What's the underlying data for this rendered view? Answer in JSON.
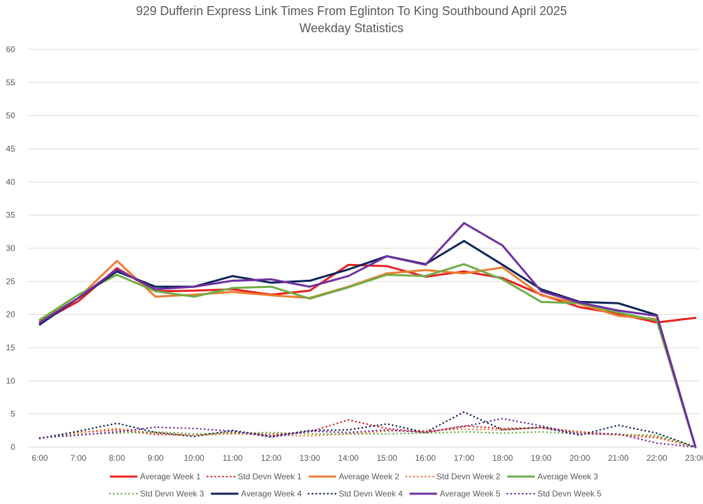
{
  "chart_data": {
    "type": "line",
    "title": "929 Dufferin Express Link Times From Eglinton To King Southbound April 2025",
    "subtitle": "Weekday Statistics",
    "xlabel": "",
    "ylabel": "",
    "ylim": [
      0,
      60
    ],
    "yticks": [
      0,
      5,
      10,
      15,
      20,
      25,
      30,
      35,
      40,
      45,
      50,
      55,
      60
    ],
    "grid": true,
    "legend_position": "bottom",
    "categories": [
      "6:00",
      "7:00",
      "8:00",
      "9:00",
      "10:00",
      "11:00",
      "12:00",
      "13:00",
      "14:00",
      "15:00",
      "16:00",
      "17:00",
      "18:00",
      "19:00",
      "20:00",
      "21:00",
      "22:00",
      "23:00"
    ],
    "series": [
      {
        "name": "Average Week 1",
        "style": "solid",
        "color": "#e8211f",
        "values": [
          18.8,
          22.0,
          27.0,
          23.5,
          23.6,
          23.8,
          23.0,
          23.6,
          27.5,
          27.3,
          25.7,
          26.5,
          25.5,
          23.0,
          21.1,
          20.1,
          18.8,
          19.5
        ]
      },
      {
        "name": "Std Devn Week 1",
        "style": "dotted",
        "color": "#e8211f",
        "values": [
          1.3,
          2.2,
          2.6,
          1.9,
          1.8,
          2.2,
          1.9,
          2.3,
          4.1,
          2.8,
          2.2,
          3.2,
          2.8,
          2.9,
          2.3,
          1.9,
          1.5,
          0
        ]
      },
      {
        "name": "Average Week 2",
        "style": "solid",
        "color": "#ed7d31",
        "values": [
          19.0,
          22.5,
          28.1,
          22.7,
          23.0,
          23.4,
          22.9,
          22.5,
          24.2,
          26.2,
          26.7,
          26.2,
          27.1,
          22.9,
          21.6,
          19.8,
          19.3,
          0
        ]
      },
      {
        "name": "Std Devn Week 2",
        "style": "dotted",
        "color": "#ed7d31",
        "values": [
          1.3,
          2.2,
          2.8,
          2.1,
          1.8,
          2.0,
          1.8,
          1.7,
          2.0,
          2.4,
          2.5,
          2.7,
          2.6,
          2.9,
          2.2,
          1.8,
          1.4,
          0
        ]
      },
      {
        "name": "Average Week 3",
        "style": "solid",
        "color": "#70ad47",
        "values": [
          19.2,
          23.0,
          26.0,
          23.5,
          22.7,
          24.0,
          24.2,
          22.4,
          24.1,
          26.0,
          25.8,
          27.6,
          25.3,
          21.9,
          21.7,
          20.3,
          19.1,
          0
        ]
      },
      {
        "name": "Std Devn Week 3",
        "style": "dotted",
        "color": "#70ad47",
        "values": [
          1.4,
          1.9,
          2.1,
          2.3,
          2.0,
          2.1,
          2.2,
          2.0,
          2.0,
          2.0,
          2.1,
          2.3,
          2.1,
          2.3,
          2.0,
          1.9,
          1.8,
          0
        ]
      },
      {
        "name": "Average Week 4",
        "style": "solid",
        "color": "#0e2459",
        "values": [
          18.5,
          22.5,
          26.5,
          24.2,
          24.2,
          25.8,
          24.8,
          25.1,
          26.8,
          28.8,
          27.6,
          31.1,
          27.5,
          23.8,
          21.9,
          21.7,
          19.9,
          0
        ]
      },
      {
        "name": "Std Devn Week 4",
        "style": "dotted",
        "color": "#0e2459",
        "values": [
          1.3,
          2.4,
          3.6,
          2.2,
          1.6,
          2.5,
          1.6,
          2.5,
          2.6,
          3.5,
          2.2,
          5.3,
          2.6,
          3.0,
          1.8,
          3.3,
          2.1,
          0
        ]
      },
      {
        "name": "Average Week 5",
        "style": "solid",
        "color": "#7030a0",
        "values": [
          18.8,
          22.5,
          26.8,
          23.8,
          24.2,
          25.1,
          25.3,
          24.2,
          25.8,
          28.8,
          27.5,
          33.8,
          30.4,
          23.5,
          21.8,
          20.6,
          19.8,
          0
        ]
      },
      {
        "name": "Std Devn Week 5",
        "style": "dotted",
        "color": "#7030a0",
        "values": [
          1.4,
          1.8,
          2.3,
          3.0,
          2.8,
          2.4,
          1.5,
          2.4,
          2.2,
          2.6,
          2.2,
          3.1,
          4.3,
          3.2,
          2.0,
          2.0,
          0.6,
          0
        ]
      }
    ]
  }
}
